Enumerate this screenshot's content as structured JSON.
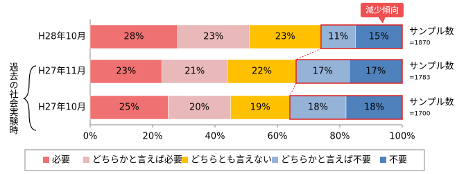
{
  "chart_data": {
    "type": "stacked-bar-horizontal",
    "categories": [
      "H28年10月",
      "H27年11月",
      "H27年10月"
    ],
    "series": [
      {
        "name": "必要",
        "color": "#f07171",
        "values": [
          28,
          23,
          25
        ],
        "value_labels": [
          "28%",
          "23%",
          "25%"
        ]
      },
      {
        "name": "どちらかと言えば必要",
        "color": "#e9b8b8",
        "values": [
          23,
          21,
          20
        ],
        "value_labels": [
          "23%",
          "21%",
          "20%"
        ]
      },
      {
        "name": "どちらとも言えない",
        "color": "#ffc000",
        "values": [
          23,
          22,
          19
        ],
        "value_labels": [
          "23%",
          "22%",
          "19%"
        ]
      },
      {
        "name": "どちらかと言えば不要",
        "color": "#95b3d7",
        "values": [
          11,
          17,
          18
        ],
        "value_labels": [
          "11%",
          "17%",
          "18%"
        ]
      },
      {
        "name": "不要",
        "color": "#4f81bd",
        "values": [
          15,
          17,
          18
        ],
        "value_labels": [
          "15%",
          "17%",
          "18%"
        ]
      }
    ],
    "xlim": [
      0,
      100
    ],
    "xticks": [
      {
        "value": 0,
        "label": "0%"
      },
      {
        "value": 20,
        "label": "20%"
      },
      {
        "value": 40,
        "label": "40%"
      },
      {
        "value": 60,
        "label": "60%"
      },
      {
        "value": 80,
        "label": "80%"
      },
      {
        "value": 100,
        "label": "100%"
      }
    ],
    "sample_title": "サンプル数",
    "sample_labels": [
      "=1870",
      "=1783",
      "=1700"
    ],
    "callout": "減少傾向",
    "bracket_label": "過去の社会実験時",
    "legend": "bottom"
  }
}
